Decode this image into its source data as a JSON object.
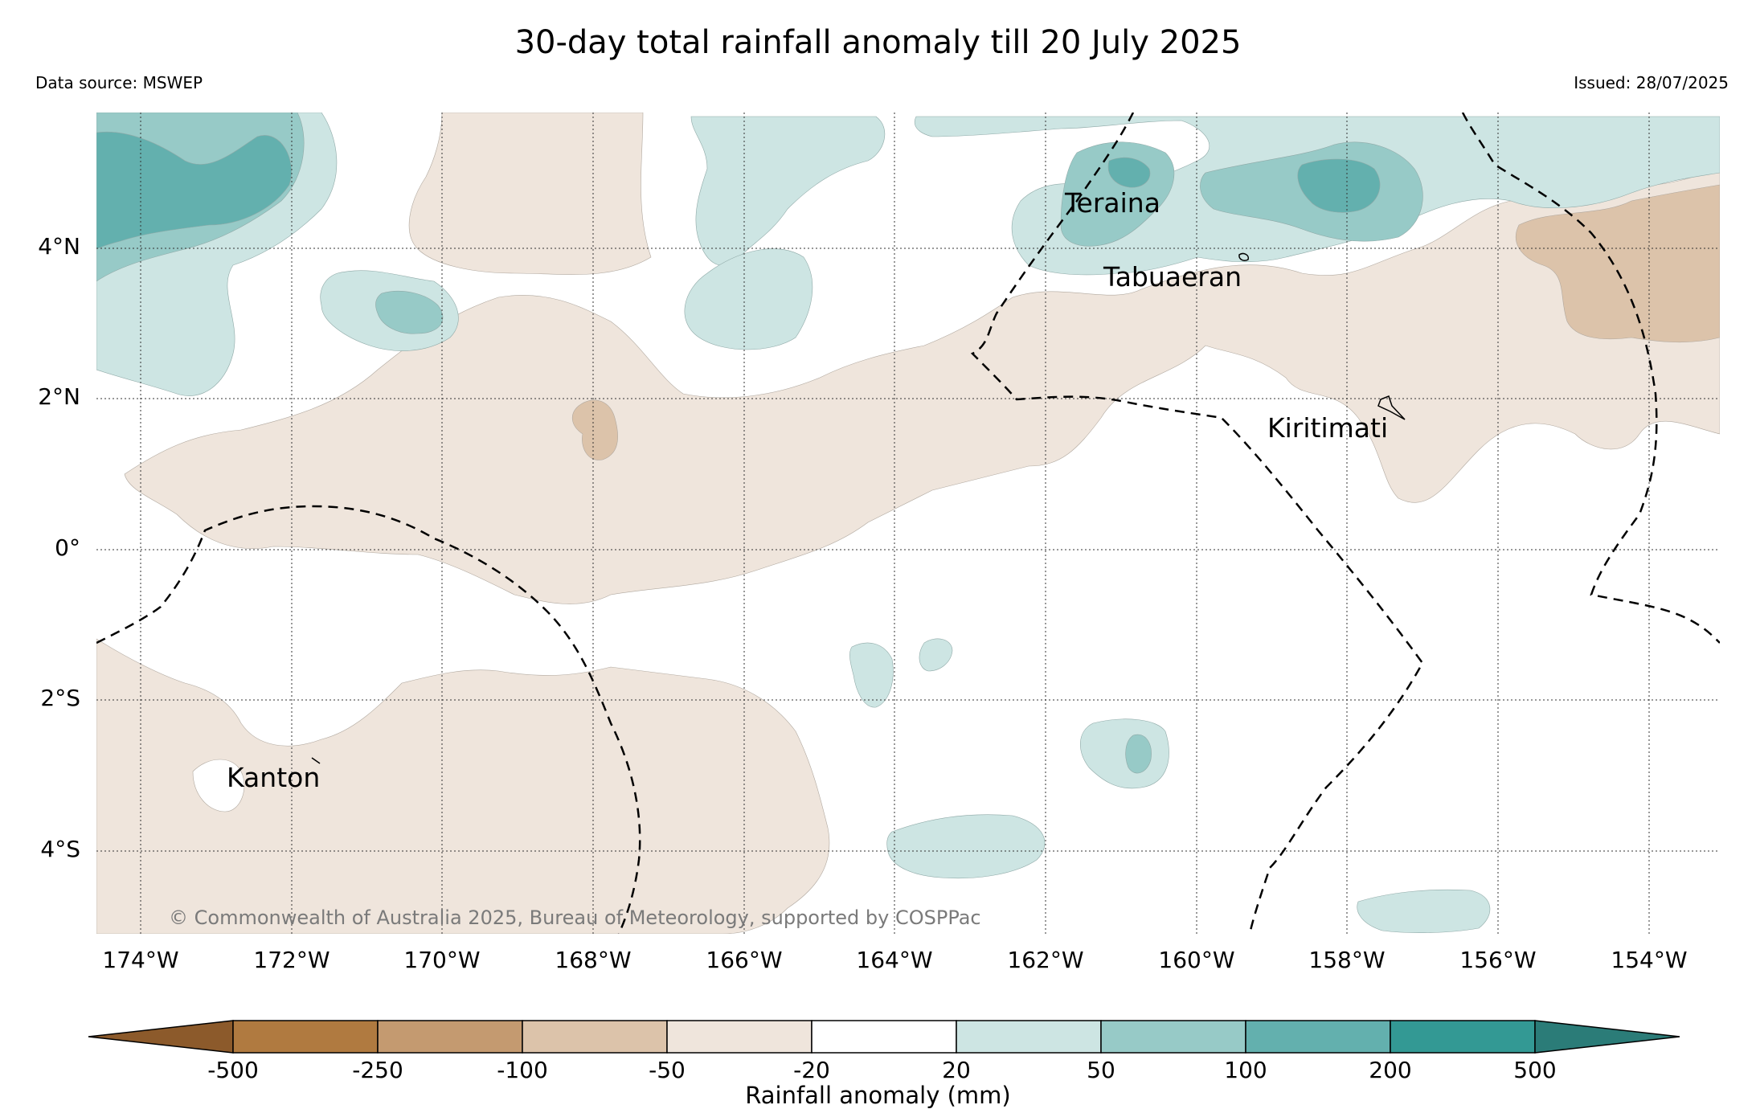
{
  "title": "30-day total rainfall anomaly till 20 July 2025",
  "data_source": "Data source: MSWEP",
  "issued": "Issued: 28/07/2025",
  "copyright": "© Commonwealth of Australia 2025, Bureau of Meteorology, supported by COSPPac",
  "map": {
    "lat_labels": [
      "4°N",
      "2°N",
      "0°",
      "2°S",
      "4°S"
    ],
    "lon_labels": [
      "174°W",
      "172°W",
      "170°W",
      "168°W",
      "166°W",
      "164°W",
      "162°W",
      "160°W",
      "158°W",
      "156°W",
      "154°W"
    ],
    "places": {
      "teraina": "Teraina",
      "tabuaeran": "Tabuaeran",
      "kiritimati": "Kiritimati",
      "kanton": "Kanton"
    }
  },
  "colorbar": {
    "title": "Rainfall anomaly (mm)",
    "ticks": [
      "-500",
      "-250",
      "-100",
      "-50",
      "-20",
      "20",
      "50",
      "100",
      "200",
      "500"
    ],
    "colors": [
      "#8c5a2b",
      "#b07a40",
      "#c49a70",
      "#dcc3aa",
      "#efe5dc",
      "#ffffff",
      "#cde5e3",
      "#97cac7",
      "#63b0ae",
      "#339994",
      "#2b7c78"
    ]
  }
}
